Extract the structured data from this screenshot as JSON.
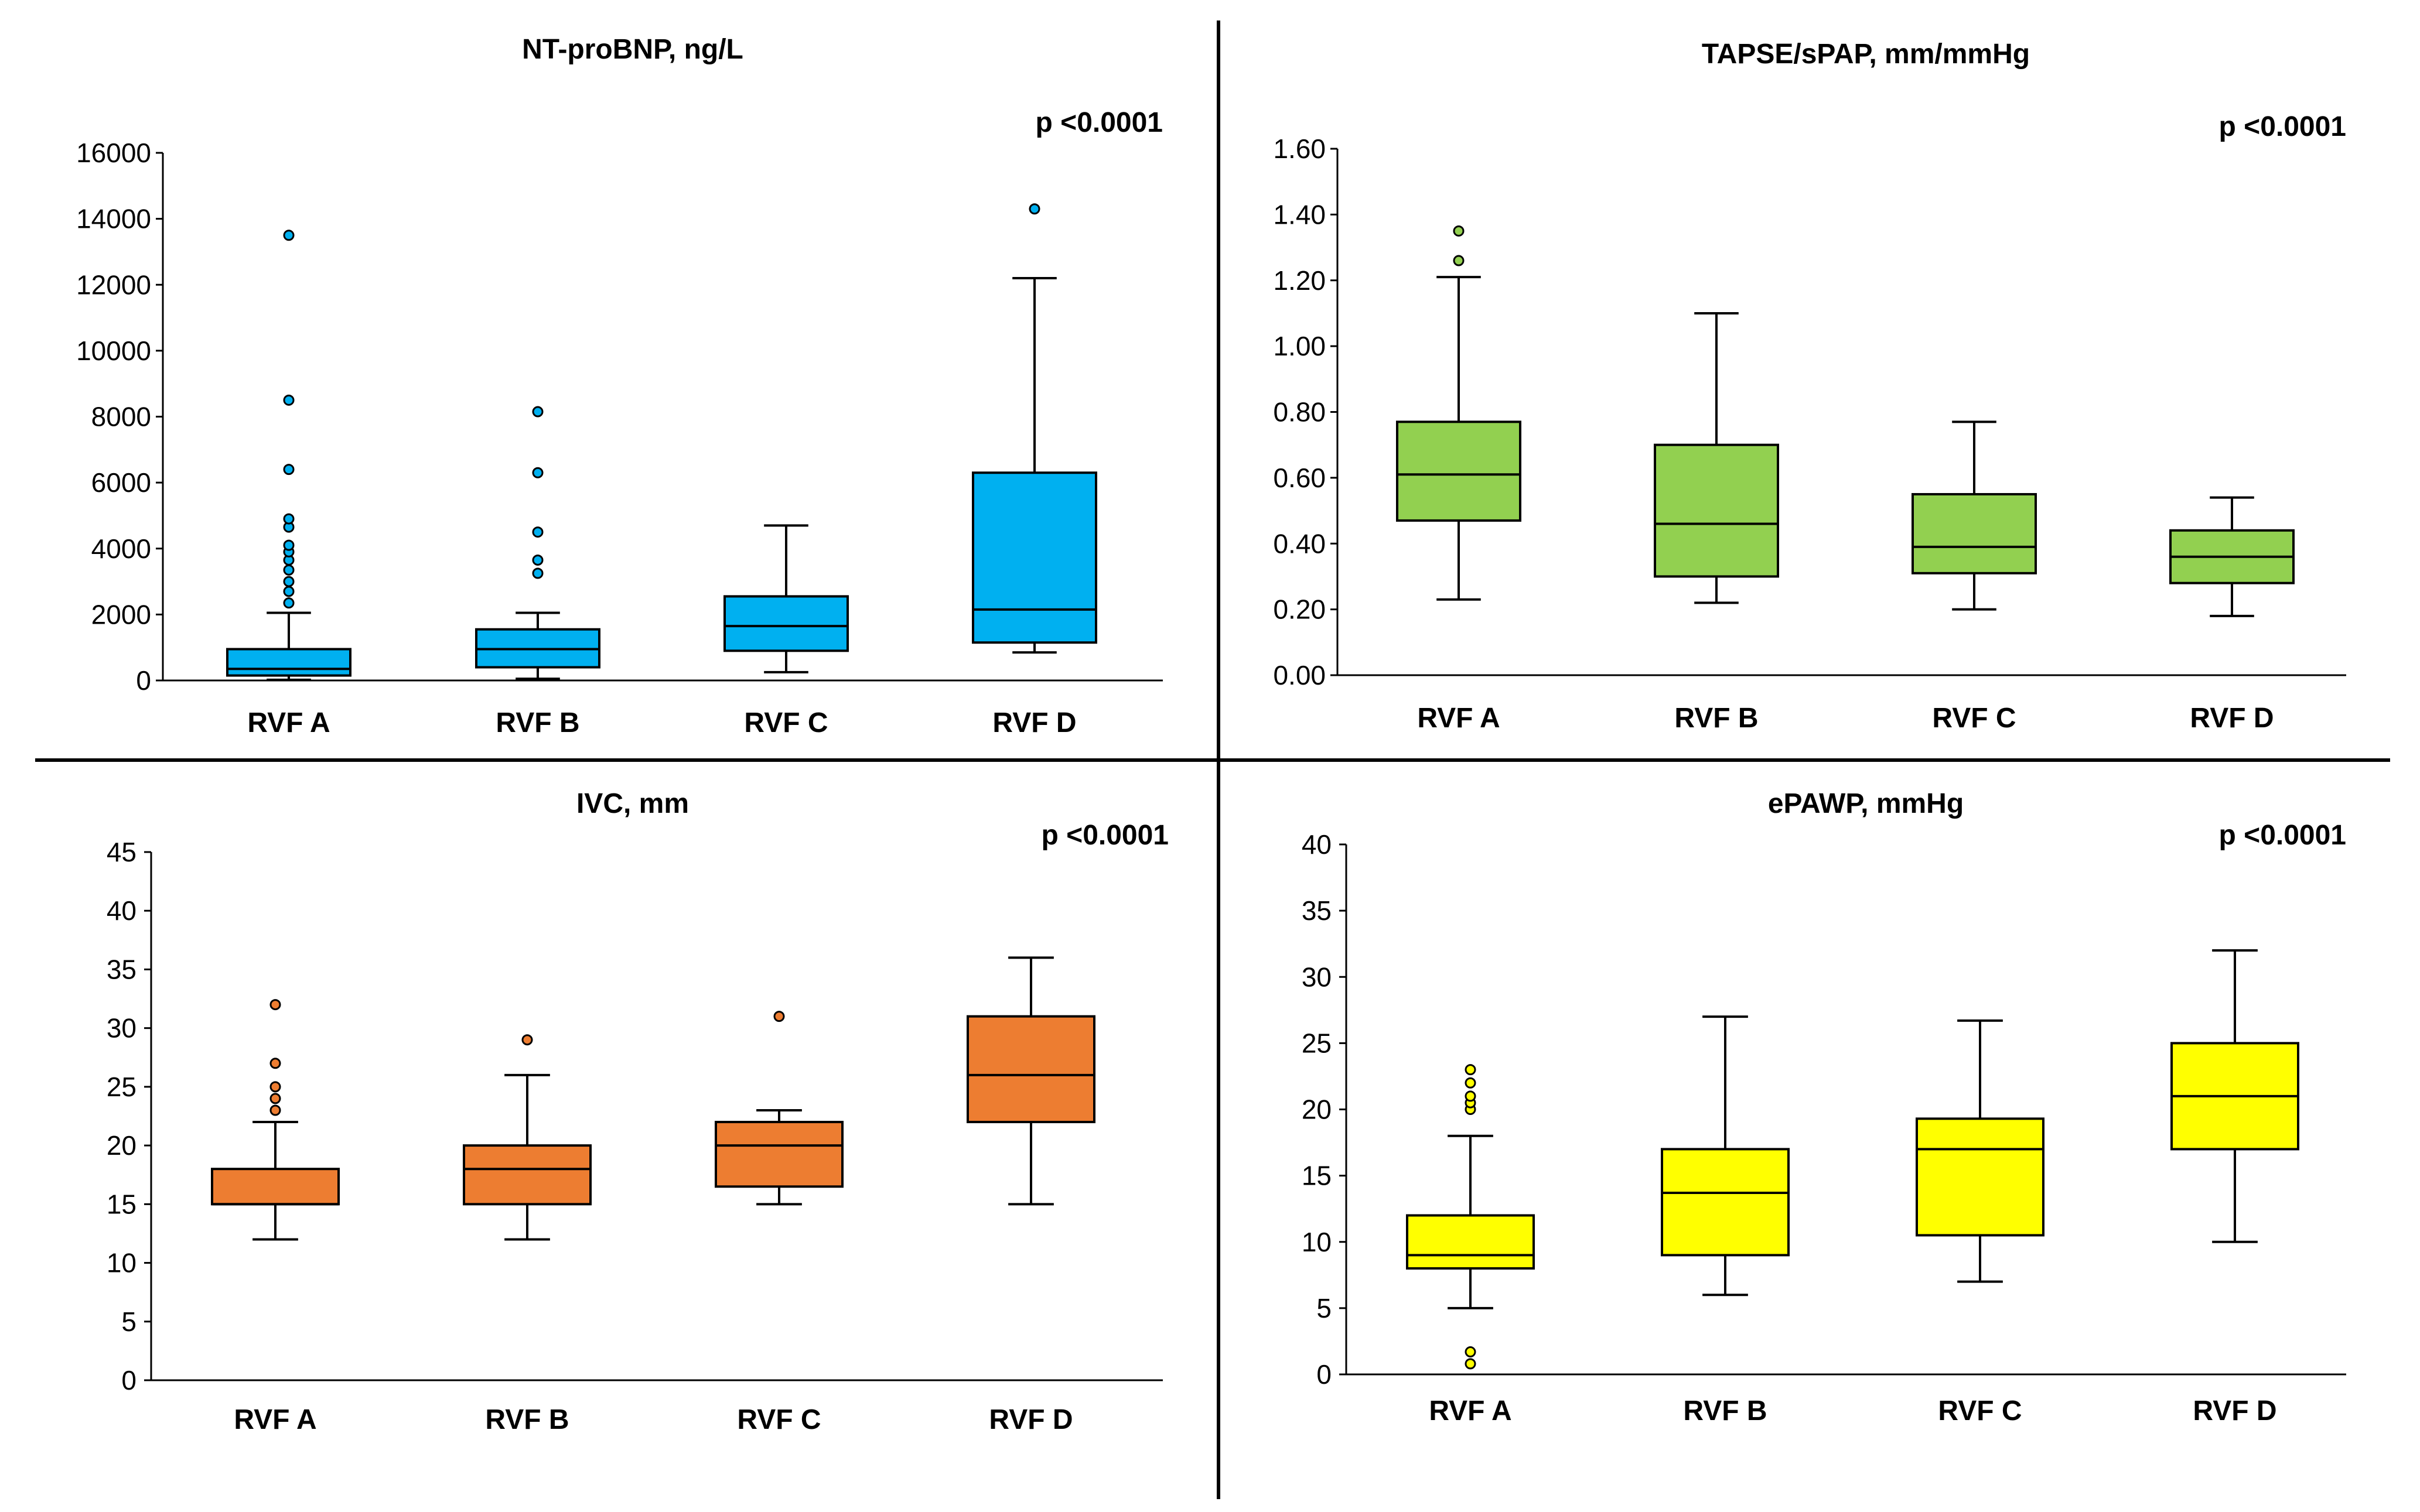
{
  "chart_data": [
    {
      "type": "box",
      "title": "NT-proBNP, ng/L",
      "p_value": "p <0.0001",
      "color": "#00B0F0",
      "outlier_fill": "#00B0F0",
      "ylim": [
        0,
        16000
      ],
      "yticks": [
        0,
        2000,
        4000,
        6000,
        8000,
        10000,
        12000,
        14000,
        16000
      ],
      "ytick_labels": [
        "0",
        "2000",
        "4000",
        "6000",
        "8000",
        "10000",
        "12000",
        "14000",
        "16000"
      ],
      "categories": [
        "RVF A",
        "RVF B",
        "RVF C",
        "RVF D"
      ],
      "boxes": [
        {
          "min": 20,
          "q1": 150,
          "median": 350,
          "q3": 950,
          "max": 2050,
          "outliers": [
            2350,
            2700,
            3000,
            3350,
            3650,
            3900,
            4100,
            4650,
            4900,
            6400,
            8500,
            13500
          ]
        },
        {
          "min": 50,
          "q1": 400,
          "median": 950,
          "q3": 1550,
          "max": 2050,
          "outliers": [
            3250,
            3650,
            4500,
            6300,
            8150
          ]
        },
        {
          "min": 250,
          "q1": 900,
          "median": 1650,
          "q3": 2550,
          "max": 4700,
          "outliers": []
        },
        {
          "min": 850,
          "q1": 1150,
          "median": 2150,
          "q3": 6300,
          "max": 12200,
          "outliers": [
            14300
          ]
        }
      ]
    },
    {
      "type": "box",
      "title": "TAPSE/sPAP, mm/mmHg",
      "p_value": "p <0.0001",
      "color": "#92D050",
      "outlier_fill": "#92D050",
      "ylim": [
        0,
        1.6
      ],
      "yticks": [
        0,
        0.2,
        0.4,
        0.6,
        0.8,
        1.0,
        1.2,
        1.4,
        1.6
      ],
      "ytick_labels": [
        "0.00",
        "0.20",
        "0.40",
        "0.60",
        "0.80",
        "1.00",
        "1.20",
        "1.40",
        "1.60"
      ],
      "categories": [
        "RVF A",
        "RVF B",
        "RVF C",
        "RVF D"
      ],
      "boxes": [
        {
          "min": 0.23,
          "q1": 0.47,
          "median": 0.61,
          "q3": 0.77,
          "max": 1.21,
          "outliers": [
            1.26,
            1.35
          ]
        },
        {
          "min": 0.22,
          "q1": 0.3,
          "median": 0.46,
          "q3": 0.7,
          "max": 1.1,
          "outliers": []
        },
        {
          "min": 0.2,
          "q1": 0.31,
          "median": 0.39,
          "q3": 0.55,
          "max": 0.77,
          "outliers": []
        },
        {
          "min": 0.18,
          "q1": 0.28,
          "median": 0.36,
          "q3": 0.44,
          "max": 0.54,
          "outliers": []
        }
      ]
    },
    {
      "type": "box",
      "title": "IVC, mm",
      "p_value": "p <0.0001",
      "color": "#ED7D31",
      "outlier_fill": "#ED7D31",
      "ylim": [
        0,
        45
      ],
      "yticks": [
        0,
        5,
        10,
        15,
        20,
        25,
        30,
        35,
        40,
        45
      ],
      "ytick_labels": [
        "0",
        "5",
        "10",
        "15",
        "20",
        "25",
        "30",
        "35",
        "40",
        "45"
      ],
      "categories": [
        "RVF A",
        "RVF B",
        "RVF C",
        "RVF D"
      ],
      "boxes": [
        {
          "min": 12,
          "q1": 15,
          "median": 15,
          "q3": 18,
          "max": 22,
          "outliers": [
            23,
            24,
            25,
            27,
            32
          ]
        },
        {
          "min": 12,
          "q1": 15,
          "median": 18,
          "q3": 20,
          "max": 26,
          "outliers": [
            29
          ]
        },
        {
          "min": 15,
          "q1": 16.5,
          "median": 20,
          "q3": 22,
          "max": 23,
          "outliers": [
            31
          ]
        },
        {
          "min": 15,
          "q1": 22,
          "median": 26,
          "q3": 31,
          "max": 36,
          "outliers": []
        }
      ]
    },
    {
      "type": "box",
      "title": "ePAWP, mmHg",
      "p_value": "p <0.0001",
      "color": "#FFFF00",
      "outlier_fill": "#FFFF00",
      "ylim": [
        0,
        40
      ],
      "yticks": [
        0,
        5,
        10,
        15,
        20,
        25,
        30,
        35,
        40
      ],
      "ytick_labels": [
        "0",
        "5",
        "10",
        "15",
        "20",
        "25",
        "30",
        "35",
        "40"
      ],
      "categories": [
        "RVF A",
        "RVF B",
        "RVF C",
        "RVF D"
      ],
      "boxes": [
        {
          "min": 5,
          "q1": 8,
          "median": 9,
          "q3": 12,
          "max": 18,
          "outliers": [
            0.8,
            1.7,
            20,
            20.5,
            21,
            22,
            23
          ]
        },
        {
          "min": 6,
          "q1": 9,
          "median": 13.7,
          "q3": 17,
          "max": 27,
          "outliers": []
        },
        {
          "min": 7,
          "q1": 10.5,
          "median": 17,
          "q3": 19.3,
          "max": 26.7,
          "outliers": []
        },
        {
          "min": 10,
          "q1": 17,
          "median": 21,
          "q3": 25,
          "max": 32,
          "outliers": []
        }
      ]
    }
  ]
}
